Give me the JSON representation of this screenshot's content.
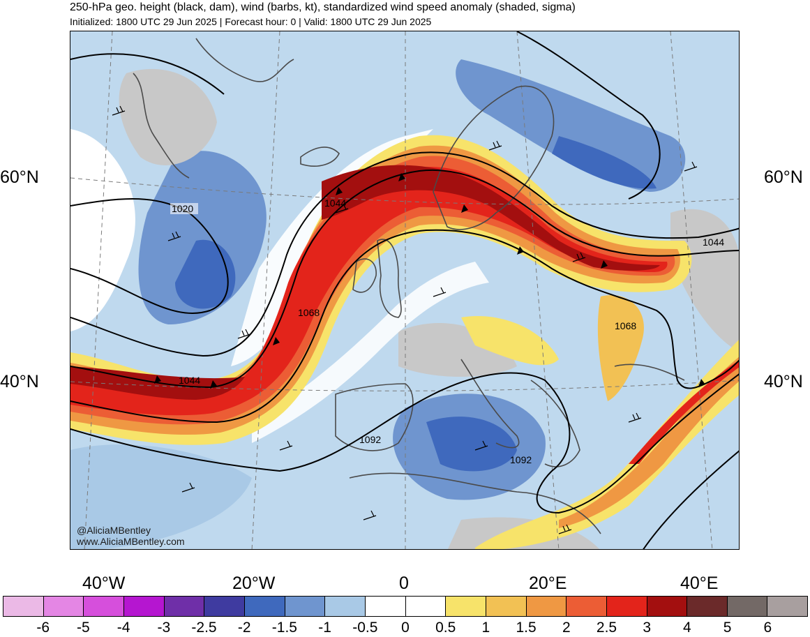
{
  "header": {
    "title": "250-hPa geo. height (black, dam), wind (barbs, kt), standardized wind speed anomaly (shaded, sigma)",
    "subtitle": "Initialized: 1800 UTC 29 Jun 2025 | Forecast hour: 0 | Valid: 1800 UTC 29 Jun 2025"
  },
  "map": {
    "lat_labels": {
      "left_60": "60°N",
      "right_60": "60°N",
      "left_40": "40°N",
      "right_40": "40°N"
    },
    "lon_labels": {
      "w40": "40°W",
      "w20": "20°W",
      "zero": "0",
      "e20": "20°E",
      "e40": "40°E"
    },
    "contour_labels": {
      "c1": "1020",
      "c2": "1044",
      "c3": "1044",
      "c4": "1044",
      "c5": "1068",
      "c6": "1068",
      "c7": "1092",
      "c8": "1092"
    },
    "credit": {
      "handle": "@AliciaMBentley",
      "site": "www.AliciaMBentley.com"
    }
  },
  "colorbar": {
    "colors": [
      "#ebb9e6",
      "#e486e4",
      "#d64fdc",
      "#b516d0",
      "#6f2fa8",
      "#3f3ba0",
      "#3f69bd",
      "#6f95cf",
      "#a9c9e6",
      "#ffffff",
      "#ffffff",
      "#f7e36a",
      "#f2c154",
      "#ef9843",
      "#ec5d35",
      "#e3241b",
      "#a30f0f",
      "#6b2a2a",
      "#736966",
      "#a89f9f"
    ],
    "labels": [
      "-6",
      "-5",
      "-4",
      "-3",
      "-2.5",
      "-2",
      "-1.5",
      "-1",
      "-0.5",
      "0",
      "0.5",
      "1",
      "1.5",
      "2",
      "2.5",
      "3",
      "4",
      "5",
      "6"
    ]
  }
}
